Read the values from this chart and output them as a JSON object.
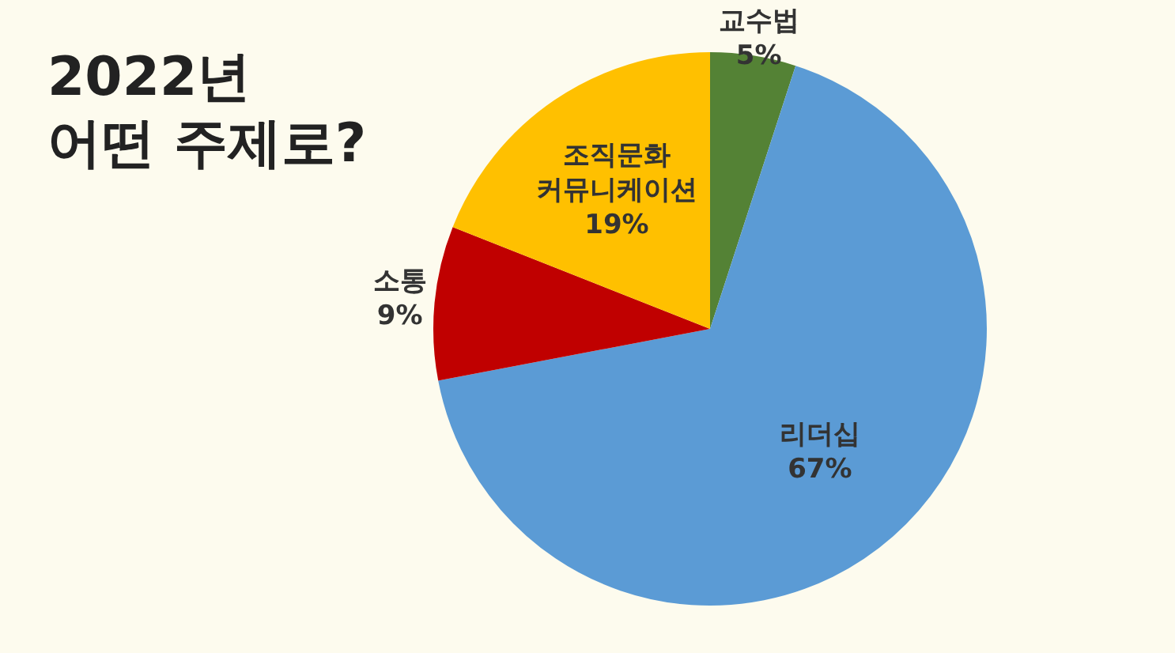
{
  "chart_data": {
    "type": "pie",
    "title": "2022년\n어떤 주제로?",
    "categories": [
      "교수법",
      "리더십",
      "소통",
      "조직문화 커뮤니케이션"
    ],
    "values": [
      5,
      67,
      9,
      19
    ],
    "value_labels": [
      "5%",
      "67%",
      "9%",
      "19%"
    ],
    "colors": [
      "#548235",
      "#5b9bd5",
      "#c00000",
      "#ffc000"
    ],
    "legend": false
  }
}
